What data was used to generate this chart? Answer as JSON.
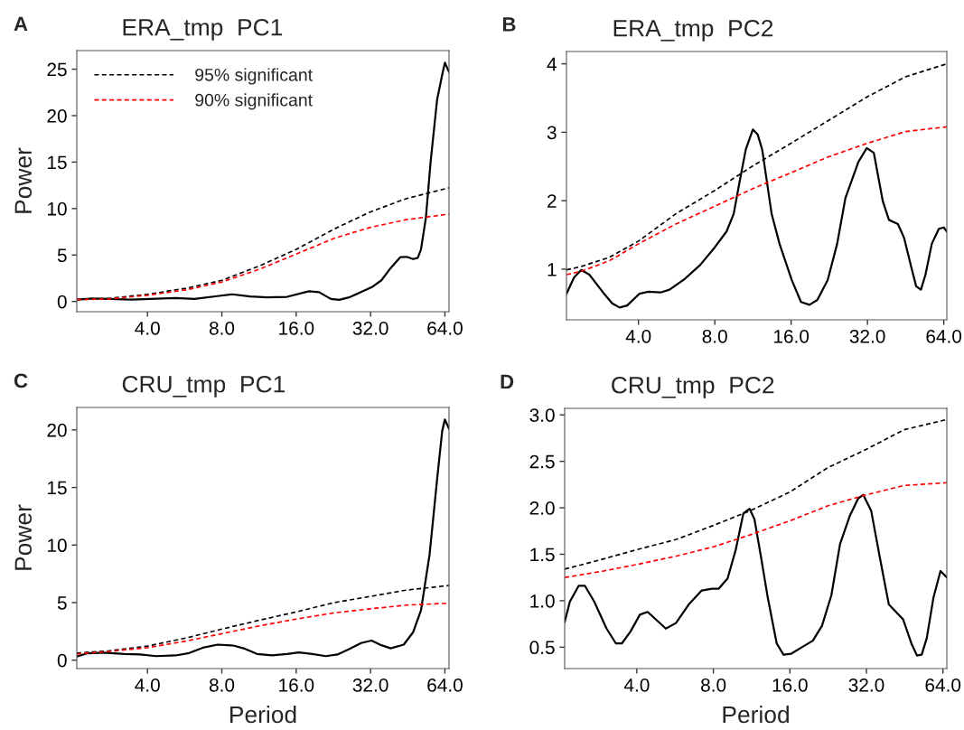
{
  "chart_data": [
    {
      "type": "line",
      "title": "ERA_tmp  PC1",
      "ylabel": "Power",
      "annotations": [
        "A"
      ],
      "log": "x",
      "grid": false,
      "legend": "top left",
      "marker": "none",
      "xlim": [
        2.07,
        66.5
      ],
      "xticks": [
        {
          "value": 4,
          "label": "4.0"
        },
        {
          "value": 8,
          "label": "8.0"
        },
        {
          "value": 16,
          "label": "16.0"
        },
        {
          "value": 32,
          "label": "32.0"
        },
        {
          "value": 64,
          "label": "64.0"
        }
      ],
      "ylim": [
        -1.1,
        27
      ],
      "yticks": [
        0,
        5,
        10,
        15,
        20,
        25
      ],
      "series": [
        {
          "color": "#000000",
          "line_style": "solid",
          "x": [
            2.07,
            2.4,
            2.8,
            3.43,
            4.6,
            5.2,
            6.2,
            7.8,
            8.8,
            10.4,
            12.2,
            14.7,
            18.0,
            19.8,
            22.1,
            23.9,
            26.2,
            32.4,
            35.4,
            38.6,
            42.2,
            44.8,
            47.6,
            49.7,
            51.2,
            53.6,
            56.0,
            59.5,
            62.4,
            64.0,
            66.5
          ],
          "values": [
            0.2,
            0.33,
            0.27,
            0.2,
            0.33,
            0.37,
            0.27,
            0.6,
            0.77,
            0.54,
            0.44,
            0.5,
            1.1,
            1.0,
            0.27,
            0.17,
            0.44,
            1.54,
            2.28,
            3.6,
            4.76,
            4.8,
            4.56,
            4.7,
            5.6,
            9.0,
            15.0,
            21.7,
            24.4,
            25.7,
            24.7
          ]
        },
        {
          "name": "95% significant",
          "color": "#000000",
          "line_style": "dashed",
          "x": [
            2.07,
            2.8,
            4,
            5.8,
            8,
            11.3,
            16,
            22.8,
            32,
            44.5,
            66.5
          ],
          "values": [
            0.2,
            0.33,
            0.77,
            1.44,
            2.28,
            3.8,
            5.6,
            7.8,
            9.65,
            11.06,
            12.23
          ]
        },
        {
          "name": "90% significant",
          "color": "#ff0000",
          "line_style": "dashed",
          "x": [
            2.07,
            2.8,
            4,
            5.8,
            8,
            11.3,
            16,
            22.8,
            32,
            44.5,
            66.5
          ],
          "values": [
            0.2,
            0.27,
            0.67,
            1.27,
            2.1,
            3.45,
            5.1,
            6.8,
            7.98,
            8.8,
            9.4
          ]
        }
      ]
    },
    {
      "type": "line",
      "title": "ERA_tmp  PC2",
      "annotations": [
        "B"
      ],
      "log": "x",
      "grid": false,
      "marker": "none",
      "xlim": [
        2.08,
        65.8
      ],
      "xticks": [
        {
          "value": 4,
          "label": "4.0"
        },
        {
          "value": 8,
          "label": "8.0"
        },
        {
          "value": 16,
          "label": "16.0"
        },
        {
          "value": 32,
          "label": "32.0"
        },
        {
          "value": 64,
          "label": "64.0"
        }
      ],
      "ylim": [
        0.26,
        4.18
      ],
      "yticks": [
        1,
        2,
        3,
        4
      ],
      "series": [
        {
          "color": "#000000",
          "line_style": "solid",
          "x": [
            2.08,
            2.23,
            2.38,
            2.56,
            2.9,
            3.15,
            3.37,
            3.61,
            4.03,
            4.38,
            4.89,
            5.3,
            6.1,
            7.0,
            8.0,
            8.9,
            9.5,
            10.0,
            10.6,
            11.3,
            11.8,
            12.3,
            13.4,
            14.4,
            16.1,
            17.5,
            18.9,
            20.3,
            22.3,
            24.3,
            26.2,
            29.5,
            31.8,
            33.9,
            36.8,
            38.9,
            42.2,
            44.6,
            47.8,
            49.8,
            52.0,
            54.2,
            57.4,
            61.2,
            64.0,
            65.8
          ],
          "values": [
            0.64,
            0.88,
            0.99,
            0.92,
            0.66,
            0.5,
            0.44,
            0.47,
            0.64,
            0.67,
            0.66,
            0.7,
            0.86,
            1.06,
            1.32,
            1.55,
            1.81,
            2.26,
            2.75,
            3.04,
            2.97,
            2.75,
            1.81,
            1.37,
            0.84,
            0.52,
            0.48,
            0.55,
            0.84,
            1.37,
            2.04,
            2.57,
            2.77,
            2.7,
            1.99,
            1.72,
            1.66,
            1.46,
            1.01,
            0.75,
            0.7,
            0.92,
            1.37,
            1.59,
            1.61,
            1.55
          ]
        },
        {
          "color": "#000000",
          "line_style": "dashed",
          "x": [
            2.08,
            2.38,
            3.06,
            4,
            5.62,
            8,
            11.2,
            16,
            22.4,
            32,
            45.2,
            65.8
          ],
          "values": [
            0.99,
            1.04,
            1.17,
            1.41,
            1.81,
            2.15,
            2.5,
            2.84,
            3.17,
            3.52,
            3.81,
            4.0
          ]
        },
        {
          "color": "#ff0000",
          "line_style": "dashed",
          "x": [
            2.08,
            2.38,
            3.06,
            4,
            5.62,
            8,
            11.2,
            16,
            22.4,
            32,
            45.2,
            65.8
          ],
          "values": [
            0.92,
            0.97,
            1.12,
            1.37,
            1.66,
            1.92,
            2.17,
            2.41,
            2.64,
            2.84,
            3.01,
            3.08
          ]
        }
      ]
    },
    {
      "type": "line",
      "title": "CRU_tmp  PC1",
      "ylabel": "Power",
      "xlabel": "Period",
      "annotations": [
        "C"
      ],
      "log": "x",
      "grid": false,
      "marker": "none",
      "xlim": [
        2.07,
        66.5
      ],
      "xticks": [
        {
          "value": 4,
          "label": "4.0"
        },
        {
          "value": 8,
          "label": "8.0"
        },
        {
          "value": 16,
          "label": "16.0"
        },
        {
          "value": 32,
          "label": "32.0"
        },
        {
          "value": 64,
          "label": "64.0"
        }
      ],
      "ylim": [
        -0.73,
        21.95
      ],
      "yticks": [
        0,
        5,
        10,
        15,
        20
      ],
      "series": [
        {
          "color": "#000000",
          "line_style": "solid",
          "x": [
            2.07,
            2.29,
            2.66,
            3.23,
            3.74,
            4.34,
            5.2,
            5.9,
            6.7,
            7.7,
            8.9,
            9.8,
            11.1,
            12.8,
            14.7,
            16.4,
            18.6,
            21.1,
            23.5,
            26.2,
            29.3,
            32.3,
            35.4,
            38.6,
            43.6,
            47.6,
            51.2,
            55.5,
            59.5,
            62.4,
            64.0,
            66.5
          ],
          "values": [
            0.32,
            0.6,
            0.65,
            0.54,
            0.49,
            0.35,
            0.41,
            0.62,
            1.08,
            1.35,
            1.27,
            1.03,
            0.54,
            0.41,
            0.54,
            0.68,
            0.54,
            0.35,
            0.49,
            0.95,
            1.49,
            1.7,
            1.3,
            1.03,
            1.35,
            2.43,
            4.32,
            9.2,
            15.7,
            19.9,
            20.9,
            20.1
          ]
        },
        {
          "color": "#000000",
          "line_style": "dashed",
          "x": [
            2.07,
            2.8,
            4,
            5.8,
            8,
            11.3,
            16,
            22.8,
            32,
            44.5,
            66.5
          ],
          "values": [
            0.62,
            0.81,
            1.22,
            1.95,
            2.7,
            3.46,
            4.19,
            5.0,
            5.54,
            6.08,
            6.49
          ]
        },
        {
          "color": "#ff0000",
          "line_style": "dashed",
          "x": [
            2.07,
            2.8,
            4,
            5.8,
            8,
            11.3,
            16,
            22.8,
            32,
            44.5,
            66.5
          ],
          "values": [
            0.54,
            0.76,
            1.08,
            1.68,
            2.3,
            2.97,
            3.57,
            4.11,
            4.46,
            4.78,
            4.95
          ]
        }
      ]
    },
    {
      "type": "line",
      "title": "CRU_tmp  PC2",
      "xlabel": "Period",
      "annotations": [
        "D"
      ],
      "log": "x",
      "grid": false,
      "marker": "none",
      "xlim": [
        2.08,
        66.3
      ],
      "xticks": [
        {
          "value": 4,
          "label": "4.0"
        },
        {
          "value": 8,
          "label": "8.0"
        },
        {
          "value": 16,
          "label": "16.0"
        },
        {
          "value": 32,
          "label": "32.0"
        },
        {
          "value": 64,
          "label": "64.0"
        }
      ],
      "ylim": [
        0.27,
        3.07
      ],
      "yticks": [
        {
          "value": 0.5,
          "label": "0.5"
        },
        {
          "value": 1,
          "label": "1.0"
        },
        {
          "value": 1.5,
          "label": "1.5"
        },
        {
          "value": 2,
          "label": "2.0"
        },
        {
          "value": 2.5,
          "label": "2.5"
        },
        {
          "value": 3,
          "label": "3.0"
        }
      ],
      "series": [
        {
          "color": "#000000",
          "line_style": "solid",
          "x": [
            2.08,
            2.18,
            2.36,
            2.5,
            2.72,
            3.04,
            3.31,
            3.49,
            3.78,
            4.11,
            4.41,
            4.79,
            5.2,
            5.7,
            6.4,
            7.2,
            7.9,
            8.4,
            9.1,
            9.8,
            10.5,
            11.1,
            11.6,
            12.3,
            13.1,
            14.2,
            15.1,
            16.2,
            17.6,
            19.7,
            21.4,
            23.3,
            25.2,
            27.5,
            29.7,
            31.1,
            33.4,
            36.4,
            39.2,
            44.6,
            48.1,
            50.6,
            52.8,
            55.3,
            58.7,
            62.6,
            66.3
          ],
          "values": [
            0.77,
            0.99,
            1.16,
            1.16,
            0.99,
            0.7,
            0.54,
            0.54,
            0.67,
            0.85,
            0.88,
            0.79,
            0.7,
            0.76,
            0.96,
            1.11,
            1.13,
            1.13,
            1.24,
            1.55,
            1.94,
            1.99,
            1.88,
            1.48,
            1.03,
            0.54,
            0.42,
            0.43,
            0.49,
            0.57,
            0.73,
            1.06,
            1.61,
            1.91,
            2.1,
            2.14,
            1.97,
            1.42,
            0.96,
            0.8,
            0.54,
            0.41,
            0.42,
            0.6,
            1.03,
            1.32,
            1.25
          ]
        },
        {
          "color": "#000000",
          "line_style": "dashed",
          "x": [
            2.08,
            2.96,
            4,
            5.72,
            8,
            11.2,
            16,
            22.5,
            32,
            45.0,
            66.3
          ],
          "values": [
            1.34,
            1.45,
            1.55,
            1.66,
            1.81,
            1.97,
            2.17,
            2.43,
            2.63,
            2.84,
            2.95
          ]
        },
        {
          "color": "#ff0000",
          "line_style": "dashed",
          "x": [
            2.08,
            2.96,
            4,
            5.72,
            8,
            11.2,
            16,
            22.5,
            32,
            45.0,
            66.3
          ],
          "values": [
            1.25,
            1.32,
            1.39,
            1.48,
            1.58,
            1.71,
            1.86,
            2.02,
            2.14,
            2.24,
            2.27
          ]
        }
      ]
    }
  ]
}
